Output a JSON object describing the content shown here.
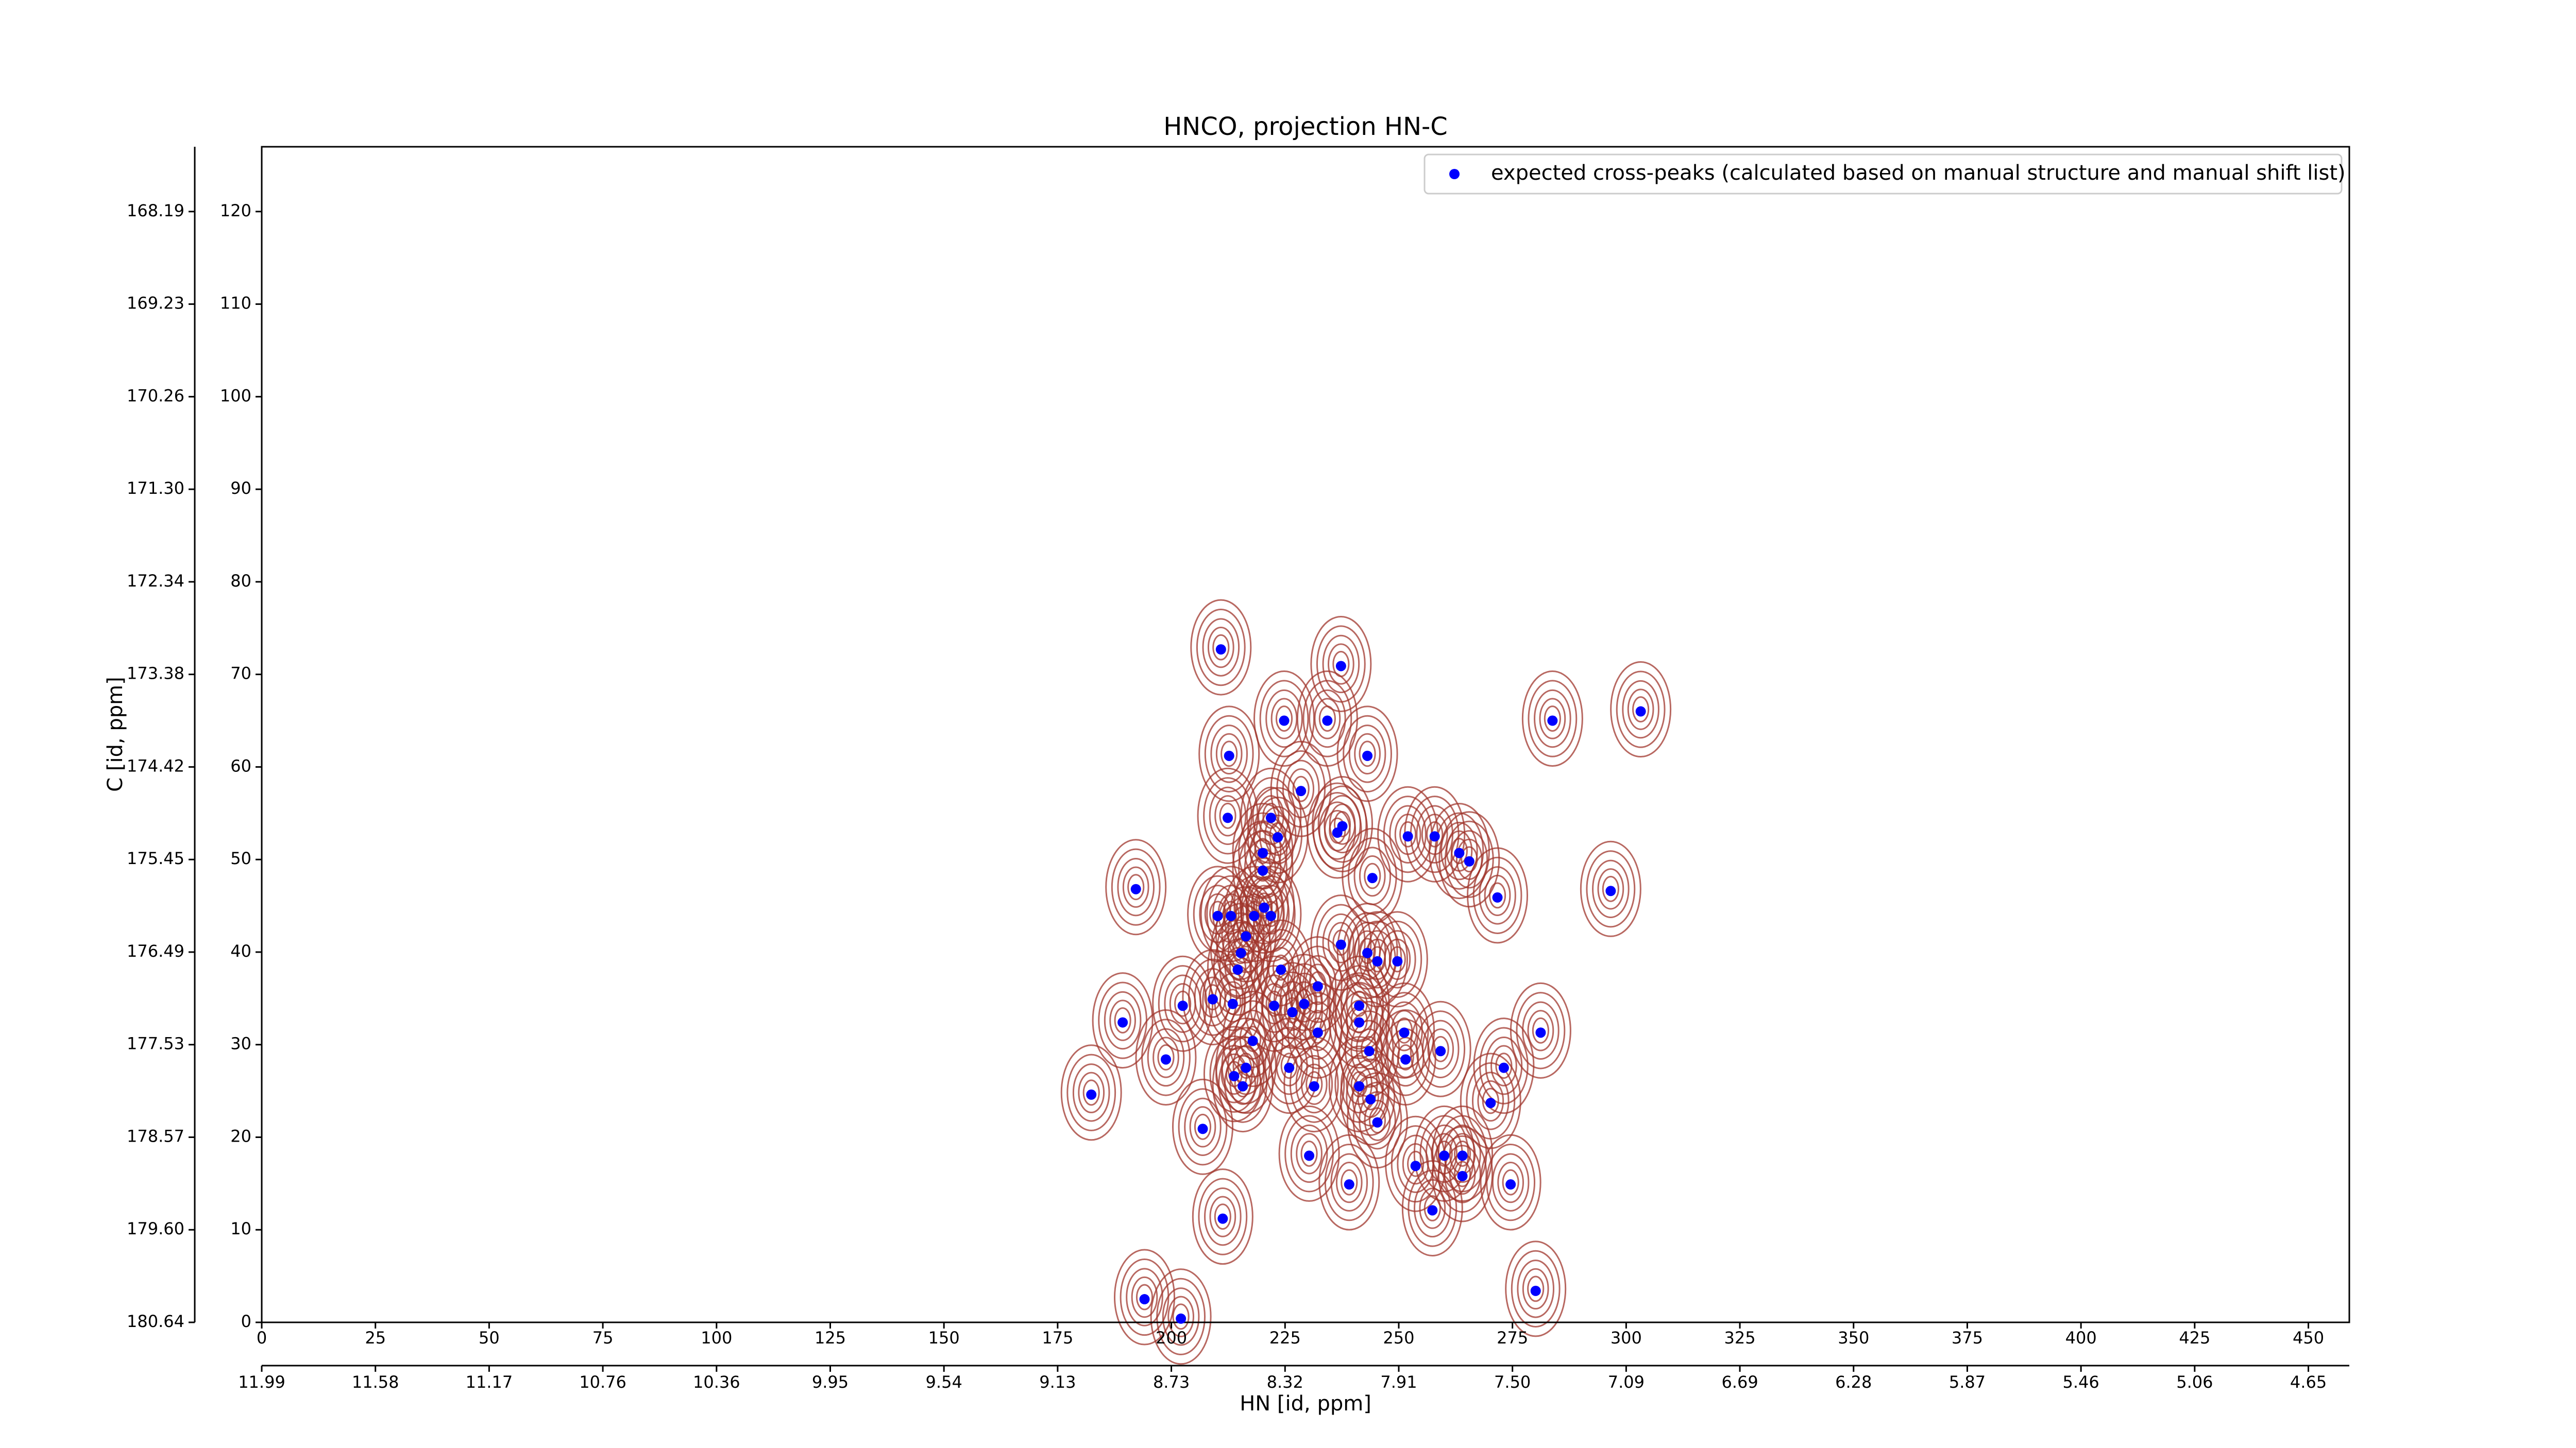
{
  "chart_data": {
    "type": "scatter",
    "title": "HNCO, projection HN-C",
    "x_label": "HN [id, ppm]",
    "y_label": "C [id, ppm]",
    "xlim": [
      0,
      459
    ],
    "ylim": [
      0,
      127
    ],
    "xticks": [
      0,
      25,
      50,
      75,
      100,
      125,
      150,
      175,
      200,
      225,
      250,
      275,
      300,
      325,
      350,
      375,
      400,
      425,
      450
    ],
    "yticks": [
      0,
      10,
      20,
      30,
      40,
      50,
      60,
      70,
      80,
      90,
      100,
      110,
      120
    ],
    "x2ticks": [
      {
        "value": 0,
        "label": "11.99"
      },
      {
        "value": 25,
        "label": "11.58"
      },
      {
        "value": 50,
        "label": "11.17"
      },
      {
        "value": 75,
        "label": "10.76"
      },
      {
        "value": 100,
        "label": "10.36"
      },
      {
        "value": 125,
        "label": "9.95"
      },
      {
        "value": 150,
        "label": "9.54"
      },
      {
        "value": 175,
        "label": "9.13"
      },
      {
        "value": 200,
        "label": "8.73"
      },
      {
        "value": 225,
        "label": "8.32"
      },
      {
        "value": 250,
        "label": "7.91"
      },
      {
        "value": 275,
        "label": "7.50"
      },
      {
        "value": 300,
        "label": "7.09"
      },
      {
        "value": 325,
        "label": "6.69"
      },
      {
        "value": 350,
        "label": "6.28"
      },
      {
        "value": 375,
        "label": "5.87"
      },
      {
        "value": 400,
        "label": "5.46"
      },
      {
        "value": 425,
        "label": "5.06"
      },
      {
        "value": 450,
        "label": "4.65"
      }
    ],
    "y2ticks": [
      {
        "value": 0,
        "label": "180.64"
      },
      {
        "value": 10,
        "label": "179.60"
      },
      {
        "value": 20,
        "label": "178.57"
      },
      {
        "value": 30,
        "label": "177.53"
      },
      {
        "value": 40,
        "label": "176.49"
      },
      {
        "value": 50,
        "label": "175.45"
      },
      {
        "value": 60,
        "label": "174.42"
      },
      {
        "value": 70,
        "label": "173.38"
      },
      {
        "value": 80,
        "label": "172.34"
      },
      {
        "value": 90,
        "label": "171.30"
      },
      {
        "value": 100,
        "label": "170.26"
      },
      {
        "value": 110,
        "label": "169.23"
      },
      {
        "value": 120,
        "label": "168.19"
      }
    ],
    "legend": "upper right",
    "contour_color": "#a0352c",
    "series": [
      {
        "name": "expected cross-peaks (calculated based on manual structure and manual shift list)",
        "color": "#0000ff",
        "x": [
          210.9,
          237.3,
          224.8,
          234.3,
          283.8,
          303.2,
          212.7,
          243.1,
          228.5,
          212.4,
          221.9,
          237.6,
          236.5,
          223.4,
          252.0,
          257.9,
          220.1,
          263.3,
          265.5,
          244.2,
          220.1,
          192.2,
          271.7,
          296.6,
          220.4,
          210.2,
          213.1,
          218.2,
          221.9,
          216.4,
          237.3,
          243.1,
          245.3,
          249.7,
          215.3,
          224.1,
          214.6,
          232.2,
          209.1,
          229.2,
          202.5,
          213.5,
          222.6,
          241.3,
          226.6,
          189.3,
          241.3,
          232.2,
          251.2,
          281.2,
          217.9,
          243.5,
          198.8,
          251.5,
          259.2,
          273.1,
          225.9,
          213.8,
          216.4,
          215.7,
          231.4,
          241.3,
          243.8,
          182.4,
          270.2,
          245.3,
          206.9,
          230.3,
          260.0,
          264.0,
          253.7,
          264.0,
          239.1,
          274.6,
          257.4,
          211.3,
          280.1,
          194.1,
          202.1
        ],
        "y": [
          72.7,
          70.9,
          65.0,
          65.0,
          65.0,
          66.0,
          61.2,
          61.2,
          57.4,
          54.5,
          54.5,
          53.6,
          52.9,
          52.4,
          52.5,
          52.5,
          50.7,
          50.7,
          49.8,
          48.0,
          48.8,
          46.8,
          45.9,
          46.6,
          44.8,
          43.9,
          43.9,
          43.9,
          43.9,
          41.7,
          40.8,
          39.9,
          39.0,
          39.0,
          39.9,
          38.1,
          38.1,
          36.3,
          34.9,
          34.4,
          34.2,
          34.4,
          34.2,
          34.2,
          33.5,
          32.4,
          32.4,
          31.3,
          31.3,
          31.3,
          30.4,
          29.3,
          28.4,
          28.4,
          29.3,
          27.5,
          27.5,
          26.6,
          27.5,
          25.5,
          25.5,
          25.5,
          24.1,
          24.6,
          23.7,
          21.6,
          20.9,
          18.0,
          18.0,
          18.0,
          16.9,
          15.8,
          14.9,
          14.9,
          12.1,
          11.2,
          3.4,
          2.5,
          0.4
        ]
      }
    ]
  }
}
